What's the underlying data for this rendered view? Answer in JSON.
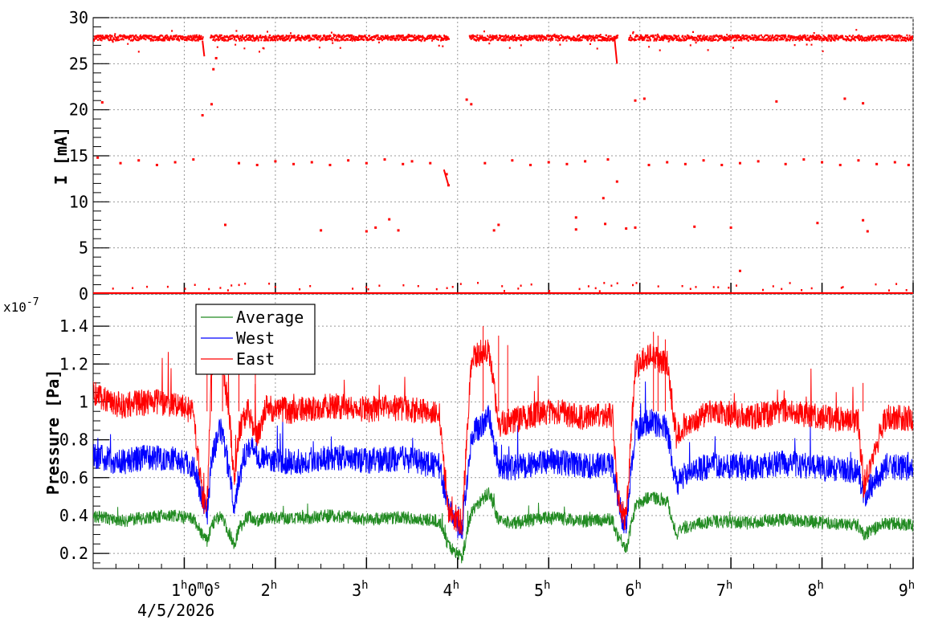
{
  "chart_data": [
    {
      "type": "scatter",
      "panel": "current",
      "ylabel": "I [mA]",
      "ylim": [
        0,
        30
      ],
      "xlim": [
        0,
        9
      ],
      "x_unit": "hours",
      "yticks": [
        "0",
        "5",
        "10",
        "15",
        "20",
        "25",
        "30"
      ],
      "grid": true,
      "series": [
        {
          "color": "#ff0000",
          "points": [
            [
              0.05,
              14.8
            ],
            [
              0.3,
              14.2
            ],
            [
              0.5,
              14.5
            ],
            [
              0.7,
              14.0
            ],
            [
              0.9,
              14.3
            ],
            [
              1.1,
              14.6
            ],
            [
              1.2,
              19.4
            ],
            [
              1.3,
              20.6
            ],
            [
              1.32,
              24.4
            ],
            [
              1.35,
              25.6
            ],
            [
              1.45,
              7.5
            ],
            [
              1.6,
              14.2
            ],
            [
              1.8,
              14.0
            ],
            [
              2.0,
              14.4
            ],
            [
              2.2,
              14.1
            ],
            [
              2.4,
              14.3
            ],
            [
              2.5,
              6.9
            ],
            [
              2.6,
              14.0
            ],
            [
              2.8,
              14.5
            ],
            [
              3.0,
              14.2
            ],
            [
              3.0,
              6.8
            ],
            [
              3.1,
              7.2
            ],
            [
              3.2,
              14.6
            ],
            [
              3.25,
              8.1
            ],
            [
              3.35,
              6.9
            ],
            [
              3.4,
              14.1
            ],
            [
              3.5,
              14.4
            ],
            [
              3.7,
              14.2
            ],
            [
              3.9,
              11.8
            ],
            [
              3.88,
              13.0
            ],
            [
              4.1,
              21.1
            ],
            [
              4.15,
              20.6
            ],
            [
              4.3,
              14.2
            ],
            [
              4.4,
              6.9
            ],
            [
              4.45,
              7.5
            ],
            [
              4.6,
              14.5
            ],
            [
              4.8,
              14.0
            ],
            [
              5.0,
              14.3
            ],
            [
              5.2,
              14.1
            ],
            [
              5.3,
              7.0
            ],
            [
              5.3,
              8.3
            ],
            [
              5.4,
              14.4
            ],
            [
              5.6,
              10.4
            ],
            [
              5.62,
              7.6
            ],
            [
              5.65,
              14.6
            ],
            [
              5.75,
              12.2
            ],
            [
              5.85,
              7.1
            ],
            [
              5.95,
              7.2
            ],
            [
              5.95,
              21.0
            ],
            [
              6.05,
              21.2
            ],
            [
              6.1,
              14.0
            ],
            [
              6.3,
              14.3
            ],
            [
              6.5,
              14.1
            ],
            [
              6.6,
              7.3
            ],
            [
              6.7,
              14.5
            ],
            [
              6.9,
              14.0
            ],
            [
              7.0,
              7.2
            ],
            [
              7.1,
              14.2
            ],
            [
              7.3,
              14.4
            ],
            [
              7.5,
              20.9
            ],
            [
              7.6,
              14.1
            ],
            [
              7.8,
              14.6
            ],
            [
              7.95,
              7.7
            ],
            [
              8.0,
              14.3
            ],
            [
              8.2,
              14.0
            ],
            [
              8.25,
              21.2
            ],
            [
              8.4,
              14.5
            ],
            [
              8.45,
              20.7
            ],
            [
              8.45,
              8.0
            ],
            [
              8.5,
              6.8
            ],
            [
              8.6,
              14.1
            ],
            [
              8.8,
              14.3
            ],
            [
              8.95,
              14.0
            ],
            [
              7.1,
              2.5
            ],
            [
              0.1,
              20.8
            ]
          ]
        }
      ]
    },
    {
      "type": "line",
      "panel": "pressure",
      "ylabel": "Pressure [Pa]",
      "exponent_label": "x10",
      "exponent_value": "-7",
      "ylim": [
        0.12,
        1.57
      ],
      "xlim": [
        0,
        9
      ],
      "x_unit": "hours",
      "yticks": [
        "0.2",
        "0.4",
        "0.6",
        "0.8",
        "1",
        "1.2",
        "1.4"
      ],
      "xticks": [
        "2",
        "3",
        "4",
        "5",
        "6",
        "7",
        "8",
        "9"
      ],
      "first_xtick": "1",
      "first_xtick_min": "0",
      "first_xtick_sec": "0",
      "hour_unit": "h",
      "min_unit": "m",
      "sec_unit": "s",
      "date_label": "4/5/2026",
      "grid": true,
      "legend_placement": "top-left",
      "series": [
        {
          "name": "Average",
          "color": "#228b22",
          "x": [
            0,
            0.3,
            0.6,
            0.9,
            1.1,
            1.2,
            1.25,
            1.3,
            1.4,
            1.5,
            1.55,
            1.6,
            1.7,
            1.8,
            1.9,
            2.2,
            2.6,
            3.0,
            3.4,
            3.8,
            3.9,
            4.0,
            4.05,
            4.15,
            4.3,
            4.35,
            4.45,
            4.6,
            5.0,
            5.4,
            5.7,
            5.75,
            5.8,
            5.85,
            5.95,
            6.1,
            6.3,
            6.4,
            6.5,
            6.8,
            7.2,
            7.6,
            8.0,
            8.4,
            8.45,
            8.7,
            9.0
          ],
          "y": [
            0.4,
            0.37,
            0.39,
            0.4,
            0.38,
            0.3,
            0.26,
            0.35,
            0.4,
            0.3,
            0.25,
            0.33,
            0.4,
            0.37,
            0.39,
            0.38,
            0.4,
            0.38,
            0.39,
            0.37,
            0.24,
            0.2,
            0.18,
            0.42,
            0.5,
            0.52,
            0.37,
            0.36,
            0.39,
            0.37,
            0.38,
            0.3,
            0.27,
            0.22,
            0.45,
            0.5,
            0.48,
            0.3,
            0.34,
            0.37,
            0.36,
            0.38,
            0.36,
            0.35,
            0.3,
            0.36,
            0.35
          ]
        },
        {
          "name": "West",
          "color": "#0000ff",
          "x": [
            0,
            0.3,
            0.6,
            0.9,
            1.1,
            1.2,
            1.25,
            1.3,
            1.4,
            1.5,
            1.55,
            1.6,
            1.7,
            1.8,
            1.9,
            2.2,
            2.6,
            3.0,
            3.4,
            3.8,
            3.9,
            4.0,
            4.05,
            4.15,
            4.3,
            4.35,
            4.45,
            4.6,
            5.0,
            5.4,
            5.7,
            5.75,
            5.8,
            5.85,
            5.95,
            6.1,
            6.3,
            6.4,
            6.5,
            6.8,
            7.2,
            7.6,
            8.0,
            8.4,
            8.45,
            8.7,
            9.0
          ],
          "y": [
            0.72,
            0.68,
            0.71,
            0.7,
            0.66,
            0.5,
            0.4,
            0.7,
            0.86,
            0.62,
            0.45,
            0.6,
            0.78,
            0.72,
            0.7,
            0.68,
            0.71,
            0.69,
            0.7,
            0.66,
            0.45,
            0.35,
            0.32,
            0.82,
            0.9,
            0.92,
            0.66,
            0.65,
            0.69,
            0.66,
            0.67,
            0.52,
            0.4,
            0.35,
            0.85,
            0.9,
            0.86,
            0.55,
            0.62,
            0.67,
            0.65,
            0.68,
            0.65,
            0.64,
            0.5,
            0.66,
            0.65
          ]
        },
        {
          "name": "East",
          "color": "#ff0000",
          "x": [
            0,
            0.3,
            0.6,
            0.9,
            1.1,
            1.2,
            1.25,
            1.3,
            1.4,
            1.5,
            1.55,
            1.6,
            1.7,
            1.8,
            1.9,
            2.2,
            2.6,
            3.0,
            3.4,
            3.8,
            3.9,
            4.0,
            4.05,
            4.15,
            4.3,
            4.35,
            4.45,
            4.6,
            5.0,
            5.4,
            5.7,
            5.75,
            5.8,
            5.85,
            5.95,
            6.1,
            6.3,
            6.4,
            6.5,
            6.8,
            7.2,
            7.6,
            8.0,
            8.4,
            8.45,
            8.7,
            9.0
          ],
          "y": [
            1.05,
            0.98,
            1.0,
            0.99,
            0.95,
            0.48,
            0.45,
            1.2,
            1.28,
            0.9,
            0.55,
            0.85,
            0.95,
            0.82,
            0.97,
            0.95,
            0.98,
            0.96,
            0.97,
            0.93,
            0.42,
            0.38,
            0.36,
            1.22,
            1.28,
            1.25,
            0.88,
            0.9,
            0.95,
            0.92,
            0.93,
            0.55,
            0.42,
            0.38,
            1.18,
            1.25,
            1.2,
            0.82,
            0.88,
            0.95,
            0.92,
            0.95,
            0.92,
            0.9,
            0.55,
            0.92,
            0.91
          ]
        }
      ]
    }
  ]
}
